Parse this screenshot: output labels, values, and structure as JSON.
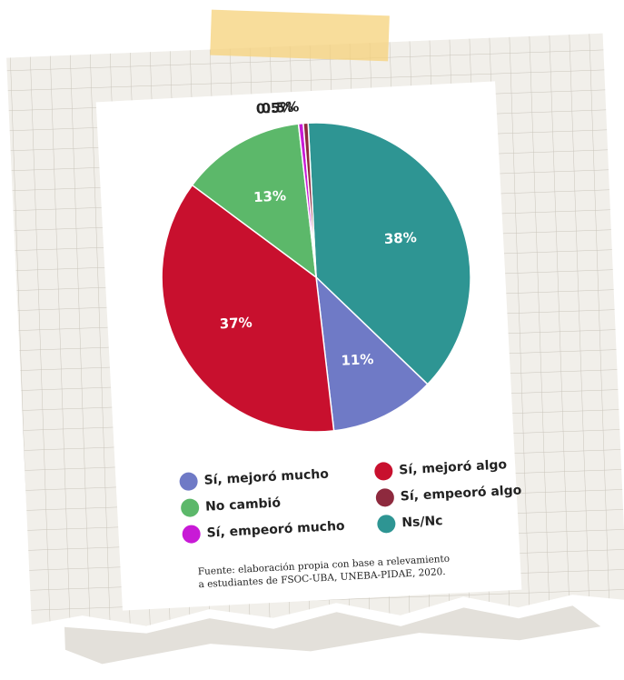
{
  "chart_data": {
    "type": "pie",
    "categories": [
      "Ns/Nc",
      "Sí, mejoró mucho",
      "Sí, mejoró algo",
      "No cambió",
      "Sí, empeoró mucho",
      "Sí, empeoró algo"
    ],
    "values": [
      38,
      11,
      37,
      13,
      0.5,
      0.5
    ],
    "value_labels": [
      "38%",
      "11%",
      "37%",
      "13%",
      "0.5%",
      "0.5%"
    ],
    "colors": [
      "#2e9593",
      "#6f7ac6",
      "#c8102e",
      "#5cb86a",
      "#c81ad6",
      "#8e2a3e"
    ],
    "source": [
      "Fuente: elaboración propia con base a relevamiento",
      "a estudiantes de FSOC-UBA, UNEBA-PIDAE, 2020."
    ]
  }
}
